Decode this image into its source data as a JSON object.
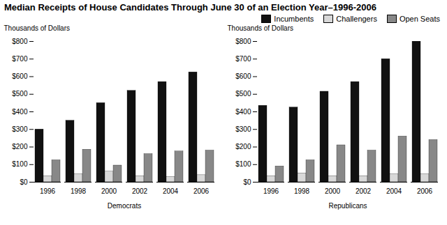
{
  "chart_data": [
    {
      "type": "bar",
      "title": "Median Receipts of House Candidates Through June 30 of an Election Year–1996-2006",
      "xlabel": "Democrats",
      "ylabel": "Thousands of Dollars",
      "categories": [
        "1996",
        "1998",
        "2000",
        "2002",
        "2004",
        "2006"
      ],
      "series": [
        {
          "name": "Incumbents",
          "color": "#111111",
          "values": [
            300,
            350,
            450,
            520,
            570,
            625
          ]
        },
        {
          "name": "Challengers",
          "color": "#d8d8d8",
          "values": [
            35,
            45,
            60,
            35,
            30,
            40
          ]
        },
        {
          "name": "Open Seats",
          "color": "#888888",
          "values": [
            125,
            185,
            95,
            160,
            175,
            180
          ]
        }
      ],
      "ylim": [
        0,
        800
      ],
      "yticks": [
        {
          "value": 0,
          "label": "$0"
        },
        {
          "value": 100,
          "label": "$100"
        },
        {
          "value": 200,
          "label": "$200"
        },
        {
          "value": 300,
          "label": "$300"
        },
        {
          "value": 400,
          "label": "$400"
        },
        {
          "value": 500,
          "label": "$500"
        },
        {
          "value": 600,
          "label": "$600"
        },
        {
          "value": 700,
          "label": "$700"
        },
        {
          "value": 800,
          "label": "$800"
        }
      ]
    },
    {
      "type": "bar",
      "xlabel": "Republicans",
      "ylabel": "Thousands of Dollars",
      "categories": [
        "1996",
        "1998",
        "2000",
        "2002",
        "2004",
        "2006"
      ],
      "series": [
        {
          "name": "Incumbents",
          "color": "#111111",
          "values": [
            435,
            425,
            515,
            570,
            700,
            800
          ]
        },
        {
          "name": "Challengers",
          "color": "#d8d8d8",
          "values": [
            35,
            50,
            35,
            35,
            45,
            45
          ]
        },
        {
          "name": "Open Seats",
          "color": "#888888",
          "values": [
            90,
            125,
            210,
            180,
            260,
            240
          ]
        }
      ],
      "ylim": [
        0,
        800
      ],
      "yticks": [
        {
          "value": 0,
          "label": "$0"
        },
        {
          "value": 100,
          "label": "$100"
        },
        {
          "value": 200,
          "label": "$200"
        },
        {
          "value": 300,
          "label": "$300"
        },
        {
          "value": 400,
          "label": "$400"
        },
        {
          "value": 500,
          "label": "$500"
        },
        {
          "value": 600,
          "label": "$600"
        },
        {
          "value": 700,
          "label": "$700"
        },
        {
          "value": 800,
          "label": "$800"
        }
      ],
      "legend": "upper right"
    }
  ]
}
